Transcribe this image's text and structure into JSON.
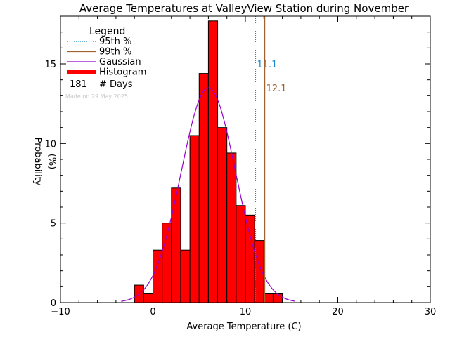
{
  "chart_data": {
    "type": "bar",
    "title": "Average Temperatures at ValleyView Station during November",
    "xlabel": "Average Temperature (C)",
    "ylabel": "Probability",
    "ylabel_unit": "(%)",
    "xlim": [
      -10,
      30
    ],
    "ylim": [
      0,
      18
    ],
    "xticks": [
      {
        "value": -10,
        "label": "−10"
      },
      {
        "value": 0,
        "label": "0"
      },
      {
        "value": 10,
        "label": "10"
      },
      {
        "value": 20,
        "label": "20"
      },
      {
        "value": 30,
        "label": "30"
      }
    ],
    "yticks": [
      {
        "value": 0,
        "label": "0"
      },
      {
        "value": 5,
        "label": "5"
      },
      {
        "value": 10,
        "label": "10"
      },
      {
        "value": 15,
        "label": "15"
      }
    ],
    "bin_width": 1,
    "histogram": {
      "bin_starts": [
        -2,
        -1,
        0,
        1,
        2,
        3,
        4,
        5,
        6,
        7,
        8,
        9,
        10,
        11,
        12,
        13
      ],
      "values": [
        1.1,
        0.55,
        3.3,
        5.0,
        7.2,
        3.3,
        10.5,
        14.4,
        17.7,
        11.0,
        9.4,
        6.1,
        5.5,
        3.9,
        0.55,
        0.55
      ]
    },
    "gaussian": {
      "mean": 6.0,
      "sigma": 2.95,
      "peak": 13.5,
      "color": "#9900cc"
    },
    "percentiles": [
      {
        "name": "95th %",
        "value": 11.1,
        "label": "11.1",
        "color": "#1e88c8",
        "style": "dotted"
      },
      {
        "name": "99th %",
        "value": 12.1,
        "label": "12.1",
        "color": "#a0622d",
        "style": "solid"
      }
    ],
    "legend": {
      "title": "Legend",
      "placement": "top-left",
      "entries": [
        {
          "label": "95th %",
          "color": "#1e88c8",
          "style": "dotted"
        },
        {
          "label": "99th %",
          "color": "#a0622d",
          "style": "solid"
        },
        {
          "label": "Gaussian",
          "color": "#9900cc",
          "style": "solid"
        },
        {
          "label": "Histogram",
          "color": "#ff0000",
          "style": "thick"
        }
      ],
      "days_count": "181",
      "days_label": "# Days",
      "made_on": "Made on 29 May 2025"
    },
    "bar_color": "#ff0000"
  }
}
